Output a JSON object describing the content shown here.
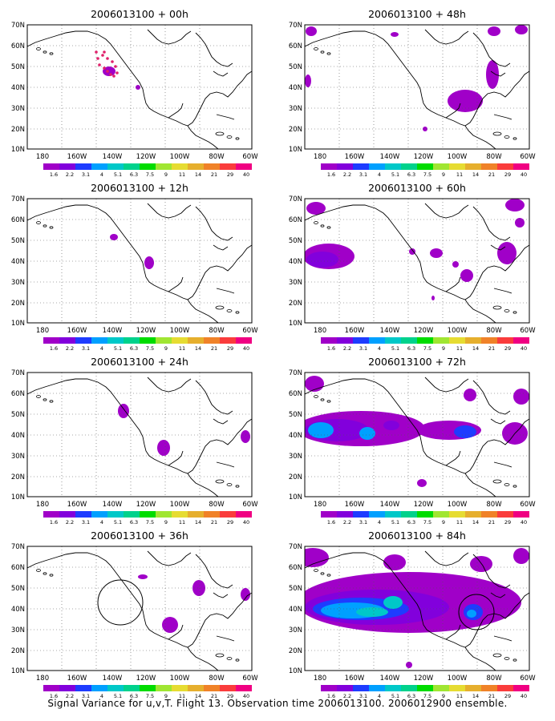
{
  "panels": [
    {
      "title": "2006013100 + 00h"
    },
    {
      "title": "2006013100 + 48h"
    },
    {
      "title": "2006013100 + 12h"
    },
    {
      "title": "2006013100 + 60h"
    },
    {
      "title": "2006013100 + 24h"
    },
    {
      "title": "2006013100 + 72h"
    },
    {
      "title": "2006013100 + 36h"
    },
    {
      "title": "2006013100 + 84h"
    }
  ],
  "lat_labels": [
    "70N",
    "60N",
    "50N",
    "40N",
    "30N",
    "20N",
    "10N"
  ],
  "lon_labels": [
    "180",
    "160W",
    "140W",
    "120W",
    "100W",
    "80W",
    "60W"
  ],
  "colorbar": {
    "labels": [
      "1.6",
      "2.2",
      "3.1",
      "4",
      "5.1",
      "6.3",
      "7.5",
      "9",
      "11",
      "14",
      "21",
      "29",
      "40"
    ],
    "colors": [
      "#a000c8",
      "#8200dc",
      "#1e3cff",
      "#00a0ff",
      "#00c8c8",
      "#00d28c",
      "#00dc00",
      "#a0e632",
      "#e6dc32",
      "#e6af2d",
      "#f08228",
      "#fa3c3c",
      "#f00082"
    ]
  },
  "caption": "Signal Variance for u,v,T. Flight 13. Observation time 2006013100. 2006012900 ensemble."
}
